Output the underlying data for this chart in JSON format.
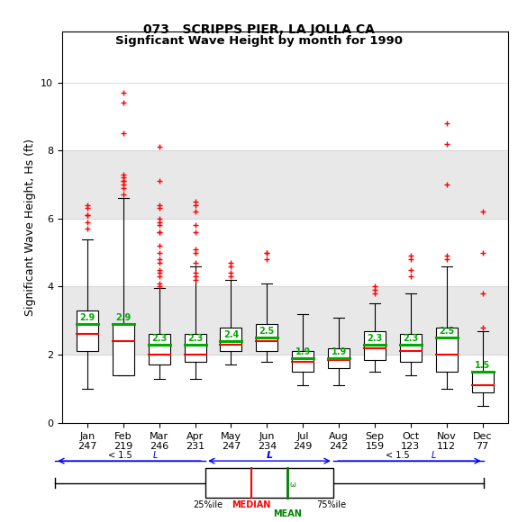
{
  "title1": "073   SCRIPPS PIER, LA JOLLA CA",
  "title2": "Signficant Wave Height by month for 1990",
  "ylabel": "Significant Wave Height, Hs (ft)",
  "months": [
    "Jan",
    "Feb",
    "Mar",
    "Apr",
    "May",
    "Jun",
    "Jul",
    "Aug",
    "Sep",
    "Oct",
    "Nov",
    "Dec"
  ],
  "counts": [
    247,
    219,
    246,
    231,
    247,
    234,
    249,
    242,
    159,
    123,
    112,
    77
  ],
  "means": [
    2.9,
    2.9,
    2.3,
    2.3,
    2.4,
    2.5,
    1.9,
    1.9,
    2.3,
    2.3,
    2.5,
    1.5
  ],
  "medians": [
    2.6,
    2.4,
    2.0,
    2.0,
    2.3,
    2.4,
    1.8,
    1.85,
    2.2,
    2.1,
    2.0,
    1.1
  ],
  "q1": [
    2.1,
    1.4,
    1.7,
    1.8,
    2.1,
    2.1,
    1.5,
    1.6,
    1.85,
    1.8,
    1.5,
    0.9
  ],
  "q3": [
    3.3,
    2.9,
    2.6,
    2.6,
    2.8,
    2.9,
    2.1,
    2.2,
    2.7,
    2.6,
    2.8,
    1.5
  ],
  "whisker_low": [
    1.0,
    1.4,
    1.3,
    1.3,
    1.7,
    1.8,
    1.1,
    1.1,
    1.5,
    1.4,
    1.0,
    0.5
  ],
  "whisker_high": [
    5.4,
    6.6,
    3.95,
    4.6,
    4.2,
    4.1,
    3.2,
    3.1,
    3.5,
    3.8,
    4.6,
    2.7
  ],
  "outliers": [
    [
      5.7,
      5.9,
      6.1,
      6.1,
      6.3,
      6.4
    ],
    [
      8.5,
      9.4,
      9.7,
      6.7,
      6.9,
      7.0,
      7.1,
      7.1,
      7.2,
      7.3
    ],
    [
      4.0,
      4.1,
      4.3,
      4.4,
      4.5,
      4.7,
      4.8,
      5.0,
      5.2,
      5.6,
      5.6,
      5.8,
      5.9,
      6.0,
      6.3,
      6.4,
      7.1,
      8.1
    ],
    [
      4.2,
      4.3,
      4.4,
      4.7,
      5.0,
      5.1,
      5.6,
      5.8,
      6.2,
      6.4,
      6.5
    ],
    [
      4.3,
      4.4,
      4.6,
      4.7
    ],
    [
      4.8,
      5.0,
      5.0
    ],
    [],
    [],
    [
      3.8,
      3.9,
      4.0
    ],
    [
      4.3,
      4.5,
      4.8,
      4.9
    ],
    [
      4.8,
      4.9,
      7.0,
      8.2,
      8.8
    ],
    [
      2.8,
      3.8,
      5.0,
      6.2
    ]
  ],
  "shading_bands": [
    {
      "ymin": 2.0,
      "ymax": 4.0,
      "color": "#e8e8e8"
    },
    {
      "ymin": 6.0,
      "ymax": 8.0,
      "color": "#e8e8e8"
    }
  ],
  "ylim": [
    0,
    11.5
  ],
  "yticks": [
    0,
    2,
    4,
    6,
    8,
    10
  ],
  "background_color": "#ffffff",
  "box_color": "#ffffff",
  "box_edge_color": "#000000",
  "median_color": "#ff0000",
  "mean_color": "#00aa00",
  "whisker_color": "#000000",
  "outlier_color": "#ff0000",
  "grid_color": "#d0d0d0"
}
